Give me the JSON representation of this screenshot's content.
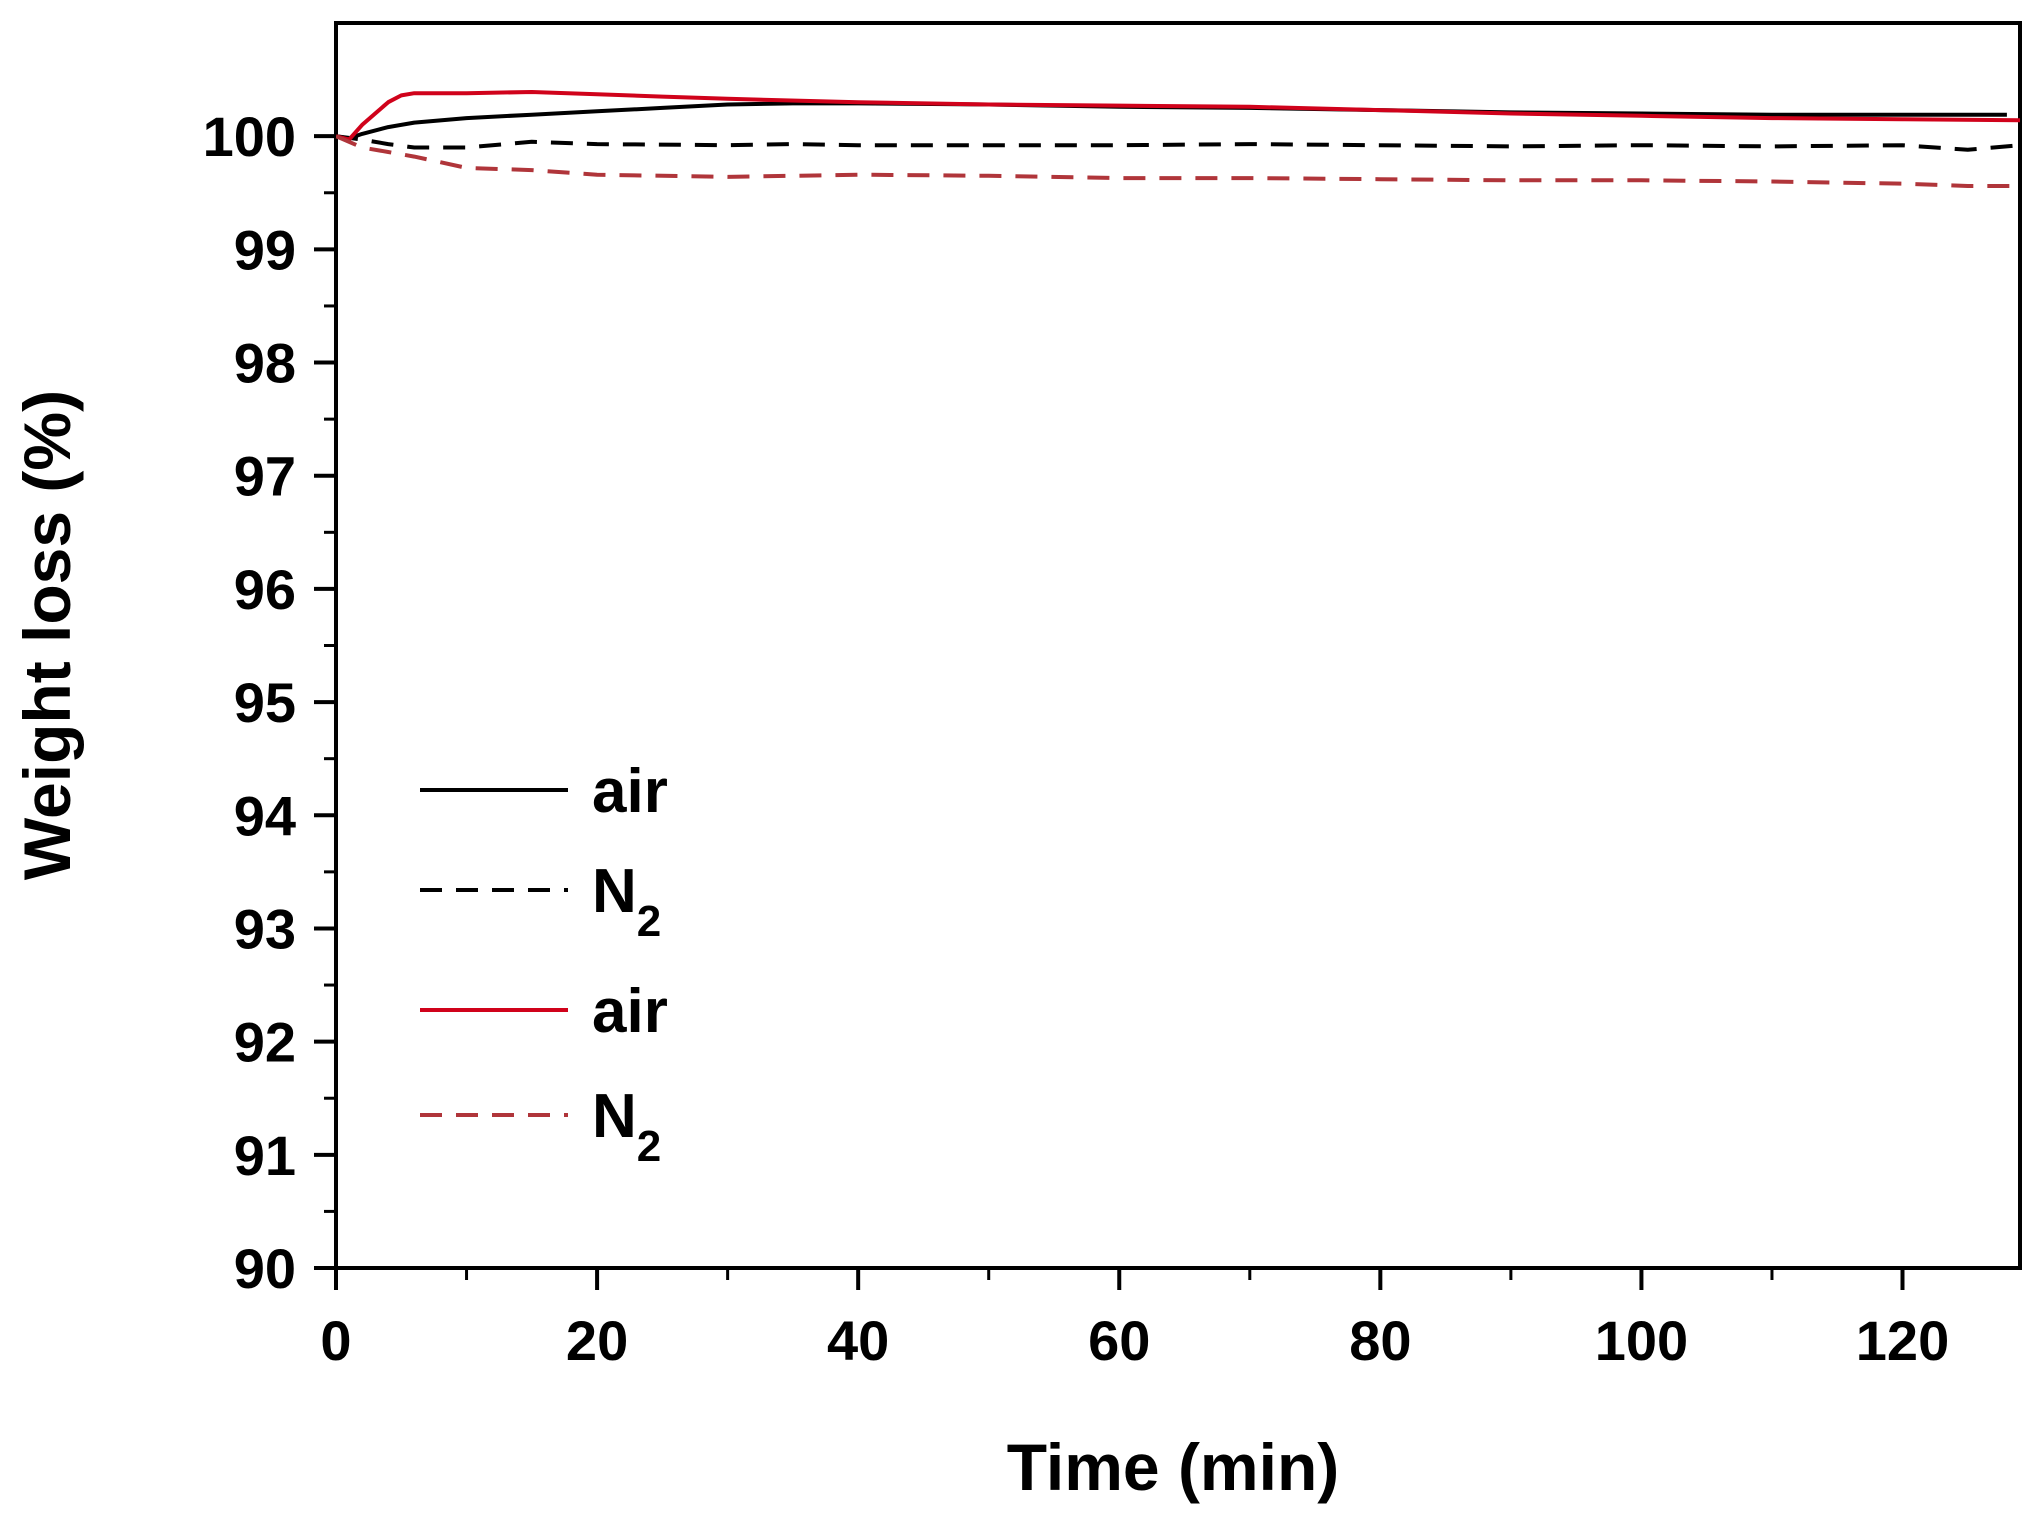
{
  "chart_data": {
    "type": "line",
    "title": "",
    "xlabel": "Time (min)",
    "ylabel": "Weight loss (%)",
    "xlim": [
      0,
      129
    ],
    "ylim": [
      90,
      101
    ],
    "xticks": [
      0,
      20,
      40,
      60,
      80,
      100,
      120
    ],
    "yticks": [
      90,
      91,
      92,
      93,
      94,
      95,
      96,
      97,
      98,
      99,
      100
    ],
    "grid": false,
    "legend_position": "left, lower-middle",
    "series": [
      {
        "name": "air",
        "color": "#000000",
        "dash": "solid",
        "x": [
          0,
          1,
          2,
          4,
          6,
          10,
          15,
          20,
          25,
          30,
          35,
          40,
          50,
          60,
          70,
          80,
          90,
          100,
          110,
          120,
          128
        ],
        "y": [
          100.0,
          99.98,
          100.02,
          100.08,
          100.12,
          100.16,
          100.19,
          100.22,
          100.25,
          100.28,
          100.29,
          100.29,
          100.28,
          100.26,
          100.25,
          100.23,
          100.21,
          100.2,
          100.19,
          100.19,
          100.19
        ]
      },
      {
        "name": "N2",
        "label_main": "N",
        "label_sub": "2",
        "color": "#000000",
        "dash": "dashed",
        "x": [
          0,
          2,
          4,
          6,
          10,
          15,
          20,
          30,
          35,
          40,
          50,
          60,
          70,
          80,
          90,
          100,
          110,
          120,
          125,
          129
        ],
        "y": [
          100.0,
          99.97,
          99.93,
          99.9,
          99.9,
          99.95,
          99.93,
          99.92,
          99.93,
          99.92,
          99.92,
          99.92,
          99.93,
          99.92,
          99.91,
          99.92,
          99.91,
          99.92,
          99.88,
          99.92
        ]
      },
      {
        "name": "air",
        "color": "#d0021b",
        "dash": "solid",
        "x": [
          0,
          1,
          2,
          3,
          4,
          5,
          6,
          10,
          15,
          20,
          25,
          30,
          40,
          50,
          60,
          70,
          80,
          90,
          100,
          110,
          120,
          129
        ],
        "y": [
          100.0,
          99.97,
          100.1,
          100.2,
          100.3,
          100.36,
          100.38,
          100.38,
          100.39,
          100.37,
          100.35,
          100.33,
          100.3,
          100.28,
          100.27,
          100.26,
          100.23,
          100.2,
          100.18,
          100.16,
          100.15,
          100.14
        ]
      },
      {
        "name": "N2",
        "label_main": "N",
        "label_sub": "2",
        "color": "#b0353a",
        "dash": "dashed",
        "x": [
          0,
          2,
          4,
          6,
          8,
          10,
          15,
          20,
          30,
          40,
          50,
          60,
          70,
          80,
          90,
          100,
          110,
          120,
          125,
          129
        ],
        "y": [
          100.0,
          99.9,
          99.86,
          99.82,
          99.77,
          99.72,
          99.7,
          99.66,
          99.64,
          99.66,
          99.65,
          99.63,
          99.63,
          99.62,
          99.61,
          99.61,
          99.6,
          99.58,
          99.56,
          99.56
        ]
      }
    ]
  }
}
